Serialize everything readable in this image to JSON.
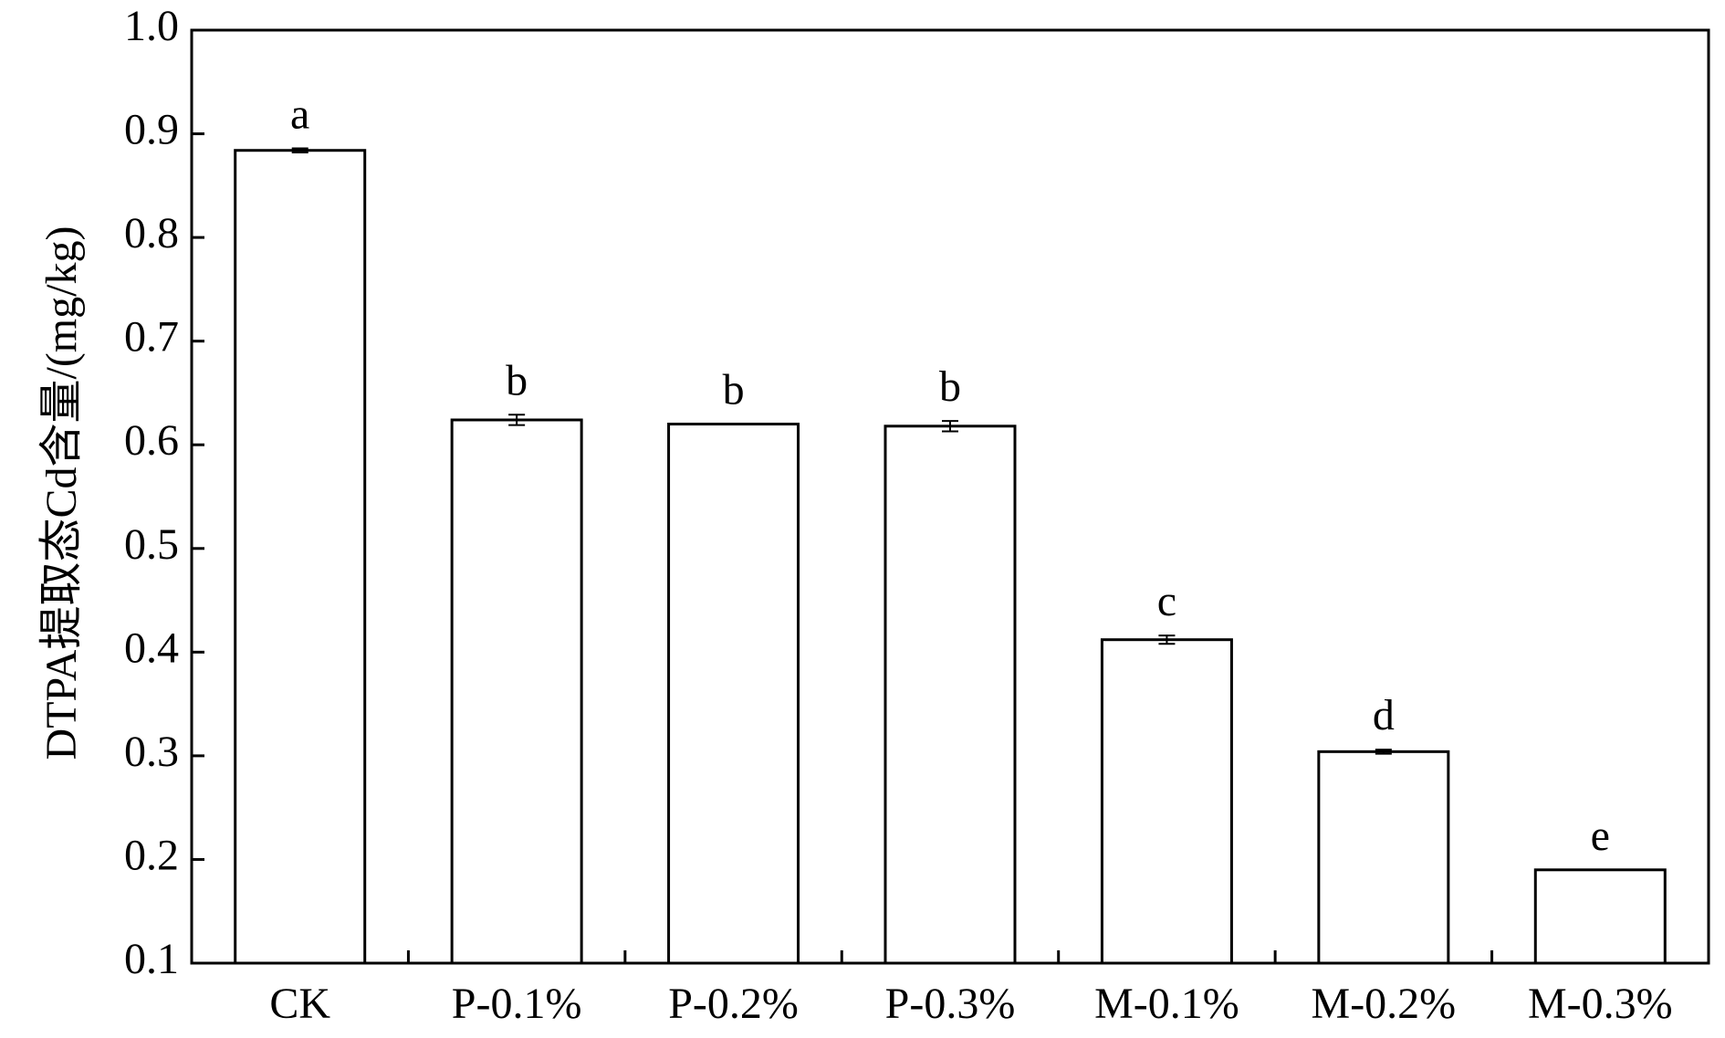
{
  "chart_data": {
    "type": "bar",
    "title": "",
    "xlabel": "",
    "ylabel": "DTPA提取态Cd含量/(mg/kg)",
    "ylim": [
      0.1,
      1.0
    ],
    "yticks": [
      "0.1",
      "0.2",
      "0.3",
      "0.4",
      "0.5",
      "0.6",
      "0.7",
      "0.8",
      "0.9",
      "1.0"
    ],
    "categories": [
      "CK",
      "P-0.1%",
      "P-0.2%",
      "P-0.3%",
      "M-0.1%",
      "M-0.2%",
      "M-0.3%"
    ],
    "values": [
      0.884,
      0.624,
      0.62,
      0.618,
      0.412,
      0.304,
      0.19
    ],
    "errors": [
      0.002,
      0.005,
      0.0,
      0.005,
      0.004,
      0.002,
      0.0
    ],
    "significance_letters": [
      "a",
      "b",
      "b",
      "b",
      "c",
      "d",
      "e"
    ],
    "bar_fill": "#ffffff",
    "bar_stroke": "#000000",
    "grid": false,
    "legend": "none"
  }
}
